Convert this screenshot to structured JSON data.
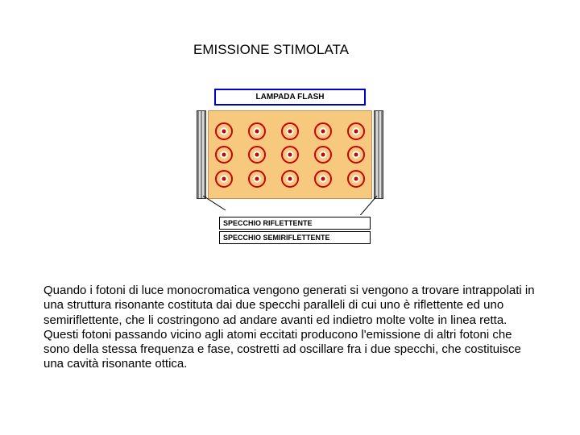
{
  "title": "EMISSIONE STIMOLATA",
  "diagram": {
    "lamp_label": "LAMPADA FLASH",
    "mirror_reflecting_label": "SPECCHIO RIFLETTENTE",
    "mirror_semi_label": "SPECCHIO SEMIRIFLETTENTE",
    "cavity_bg": "#f7c97e",
    "atom_ring_color": "#cc0000",
    "atom_dot_color": "#cc0000",
    "lamp_border_color": "#0000cc",
    "rows": 3,
    "cols": 5
  },
  "paragraph": "Quando i fotoni di luce monocromatica vengono generati si vengono a trovare intrappolati in una struttura risonante costituta dai due specchi paralleli di cui uno è riflettente ed uno semiriflettente, che li costringono ad andare avanti ed indietro molte volte in linea retta. Questi fotoni passando vicino agli atomi eccitati producono l'emissione di altri fotoni che sono della stessa  frequenza e fase, costretti ad oscillare fra i due specchi, che costituisce una cavità risonante ottica."
}
